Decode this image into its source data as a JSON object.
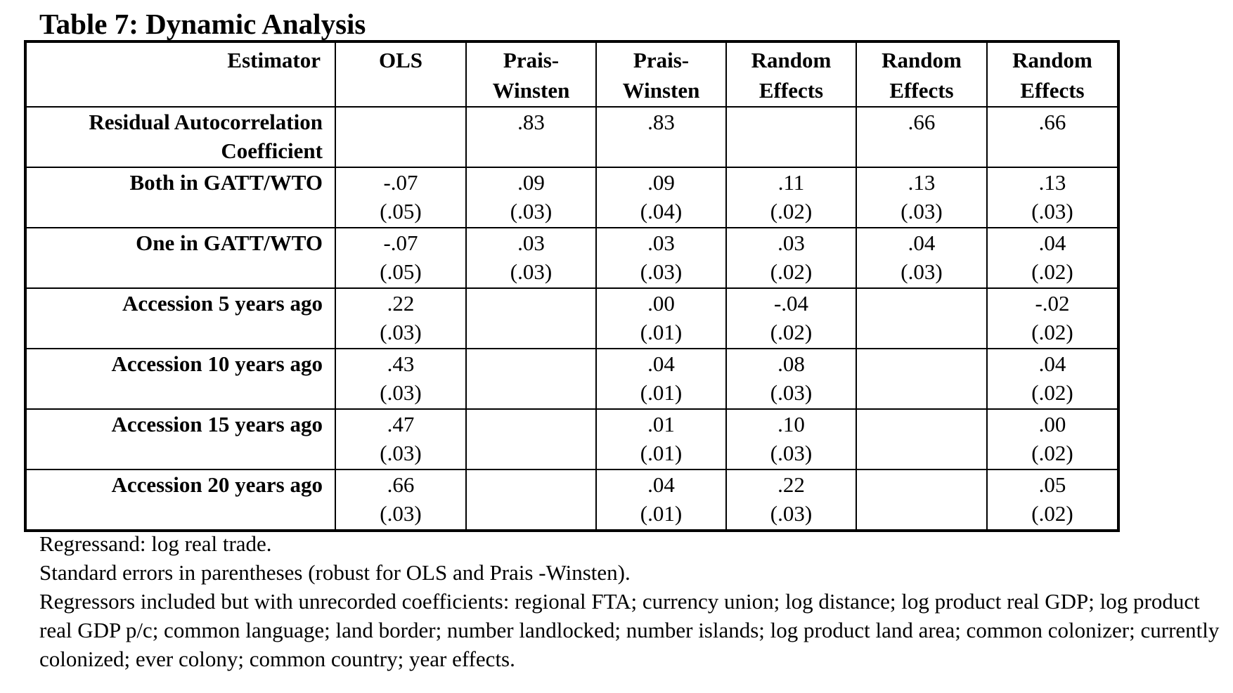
{
  "title": "Table 7: Dynamic Analysis",
  "table": {
    "stub_header": "Estimator",
    "columns": [
      "OLS",
      "Prais-Winsten",
      "Prais-Winsten",
      "Random Effects",
      "Random Effects",
      "Random Effects"
    ],
    "rows": [
      {
        "label": "Residual Autocorrelation Coefficient",
        "cells": [
          {
            "coef": "",
            "se": ""
          },
          {
            "coef": ".83",
            "se": ""
          },
          {
            "coef": ".83",
            "se": ""
          },
          {
            "coef": "",
            "se": ""
          },
          {
            "coef": ".66",
            "se": ""
          },
          {
            "coef": ".66",
            "se": ""
          }
        ]
      },
      {
        "label": "Both in GATT/WTO",
        "cells": [
          {
            "coef": "-.07",
            "se": "(.05)"
          },
          {
            "coef": ".09",
            "se": "(.03)"
          },
          {
            "coef": ".09",
            "se": "(.04)"
          },
          {
            "coef": ".11",
            "se": "(.02)"
          },
          {
            "coef": ".13",
            "se": "(.03)"
          },
          {
            "coef": ".13",
            "se": "(.03)"
          }
        ]
      },
      {
        "label": "One in GATT/WTO",
        "cells": [
          {
            "coef": "-.07",
            "se": "(.05)"
          },
          {
            "coef": ".03",
            "se": "(.03)"
          },
          {
            "coef": ".03",
            "se": "(.03)"
          },
          {
            "coef": ".03",
            "se": "(.02)"
          },
          {
            "coef": ".04",
            "se": "(.03)"
          },
          {
            "coef": ".04",
            "se": "(.02)"
          }
        ]
      },
      {
        "label": "Accession 5 years ago",
        "cells": [
          {
            "coef": ".22",
            "se": "(.03)"
          },
          {
            "coef": "",
            "se": ""
          },
          {
            "coef": ".00",
            "se": "(.01)"
          },
          {
            "coef": "-.04",
            "se": "(.02)"
          },
          {
            "coef": "",
            "se": ""
          },
          {
            "coef": "-.02",
            "se": "(.02)"
          }
        ]
      },
      {
        "label": "Accession 10 years ago",
        "cells": [
          {
            "coef": ".43",
            "se": "(.03)"
          },
          {
            "coef": "",
            "se": ""
          },
          {
            "coef": ".04",
            "se": "(.01)"
          },
          {
            "coef": ".08",
            "se": "(.03)"
          },
          {
            "coef": "",
            "se": ""
          },
          {
            "coef": ".04",
            "se": "(.02)"
          }
        ]
      },
      {
        "label": "Accession 15 years ago",
        "cells": [
          {
            "coef": ".47",
            "se": "(.03)"
          },
          {
            "coef": "",
            "se": ""
          },
          {
            "coef": ".01",
            "se": "(.01)"
          },
          {
            "coef": ".10",
            "se": "(.03)"
          },
          {
            "coef": "",
            "se": ""
          },
          {
            "coef": ".00",
            "se": "(.02)"
          }
        ]
      },
      {
        "label": "Accession 20 years ago",
        "cells": [
          {
            "coef": ".66",
            "se": "(.03)"
          },
          {
            "coef": "",
            "se": ""
          },
          {
            "coef": ".04",
            "se": "(.01)"
          },
          {
            "coef": ".22",
            "se": "(.03)"
          },
          {
            "coef": "",
            "se": ""
          },
          {
            "coef": ".05",
            "se": "(.02)"
          }
        ]
      }
    ]
  },
  "notes": [
    "Regressand: log real trade.",
    "Standard errors in parentheses (robust for OLS and Prais -Winsten).",
    "Regressors included but with unrecorded coefficients: regional FTA; currency union; log distance; log product real GDP; log product real GDP p/c; common language; land border; number landlocked; number islands; log product land area; common colonizer; currently colonized; ever colony; common country; year effects."
  ]
}
